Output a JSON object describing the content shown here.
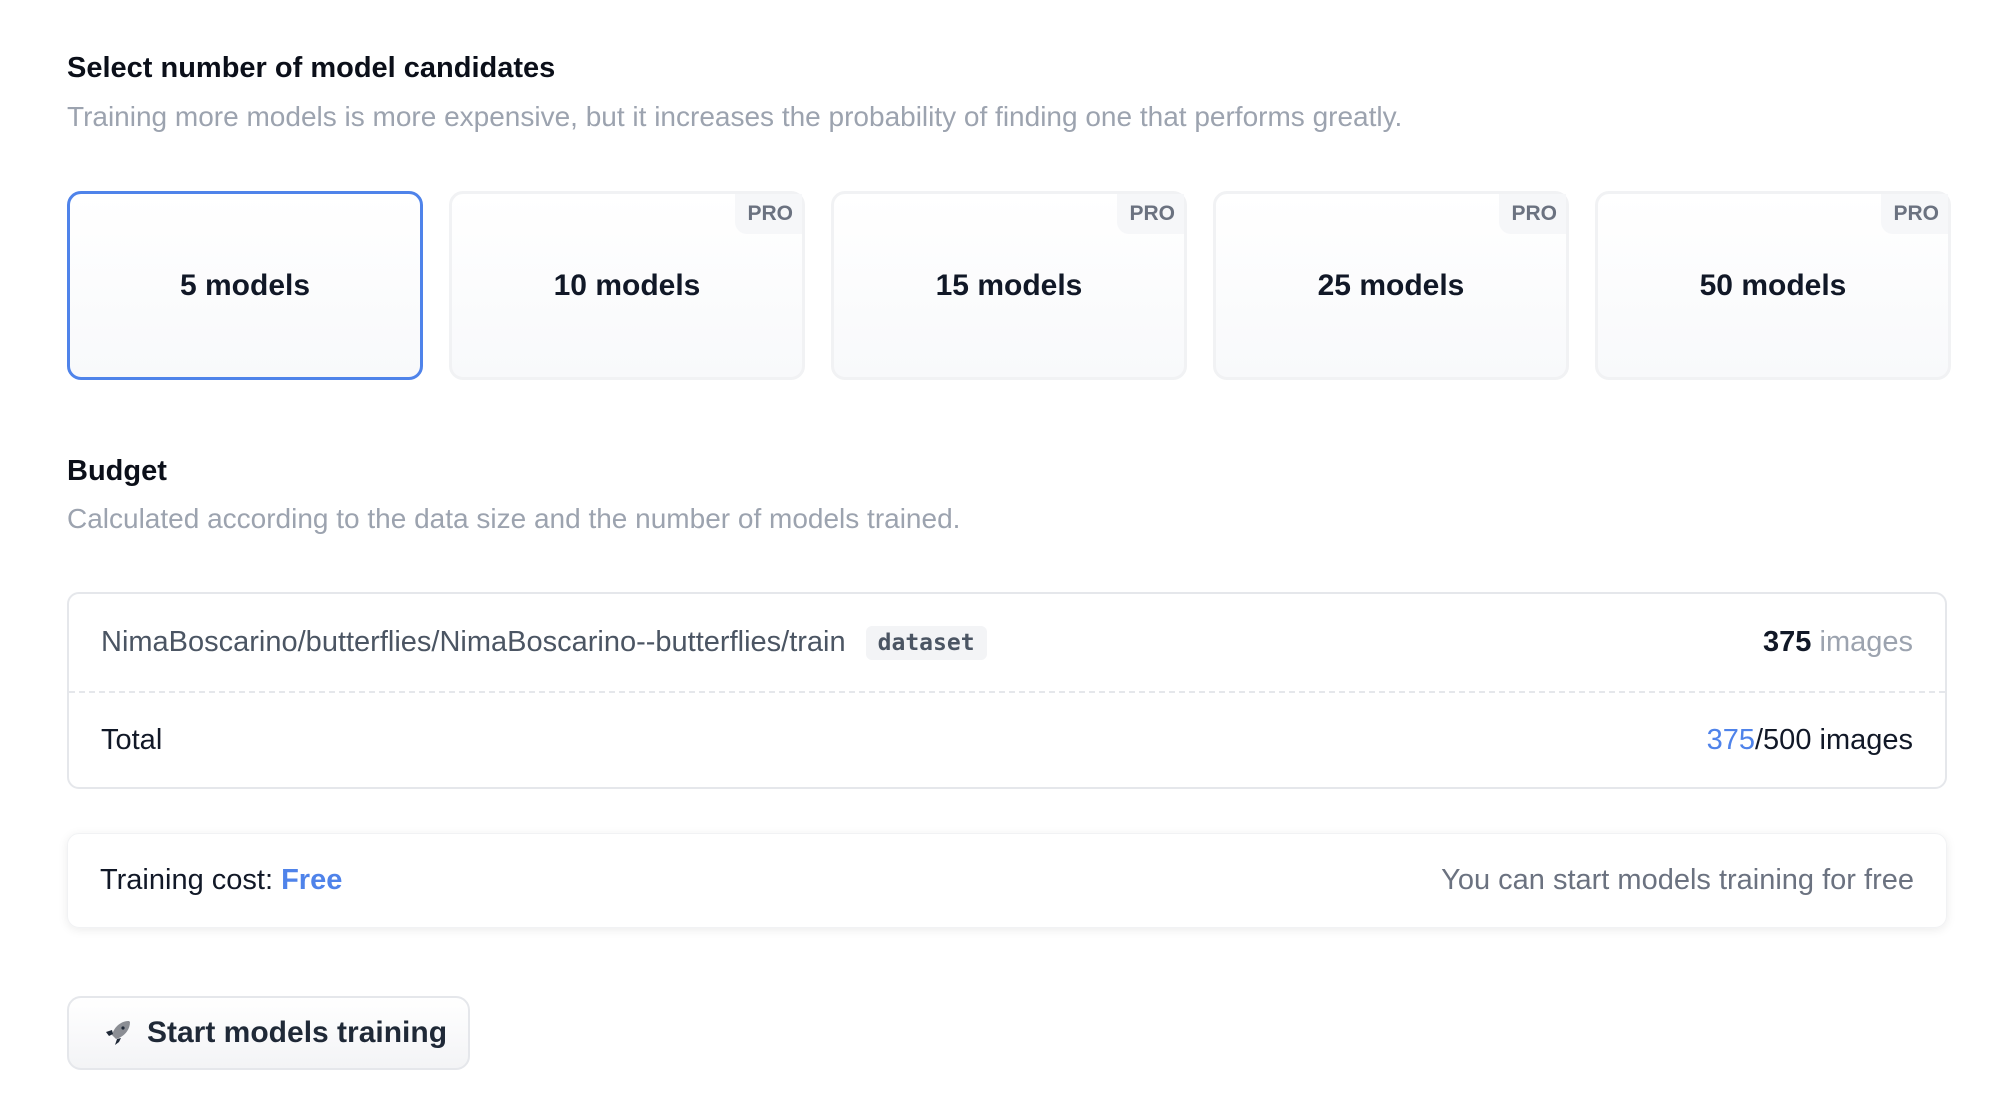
{
  "candidates": {
    "title": "Select number of model candidates",
    "subtitle": "Training more models is more expensive, but it increases the probability of finding one that performs greatly.",
    "options": [
      {
        "label": "5 models",
        "badge": "",
        "selected": true
      },
      {
        "label": "10 models",
        "badge": "PRO",
        "selected": false
      },
      {
        "label": "15 models",
        "badge": "PRO",
        "selected": false
      },
      {
        "label": "25 models",
        "badge": "PRO",
        "selected": false
      },
      {
        "label": "50 models",
        "badge": "PRO",
        "selected": false
      }
    ]
  },
  "budget": {
    "title": "Budget",
    "subtitle": "Calculated according to the data size and the number of models trained.",
    "dataset_path": "NimaBoscarino/butterflies/NimaBoscarino--butterflies/train",
    "dataset_tag": "dataset",
    "dataset_count": "375",
    "dataset_unit": "images",
    "total_label": "Total",
    "total_used": "375",
    "total_rest": "/500 images"
  },
  "cost": {
    "label": "Training cost: ",
    "value": "Free",
    "note": "You can start models training for free"
  },
  "start_button": {
    "label": "Start models training",
    "icon": "rocket-icon"
  },
  "colors": {
    "accent": "#4f83ea"
  }
}
